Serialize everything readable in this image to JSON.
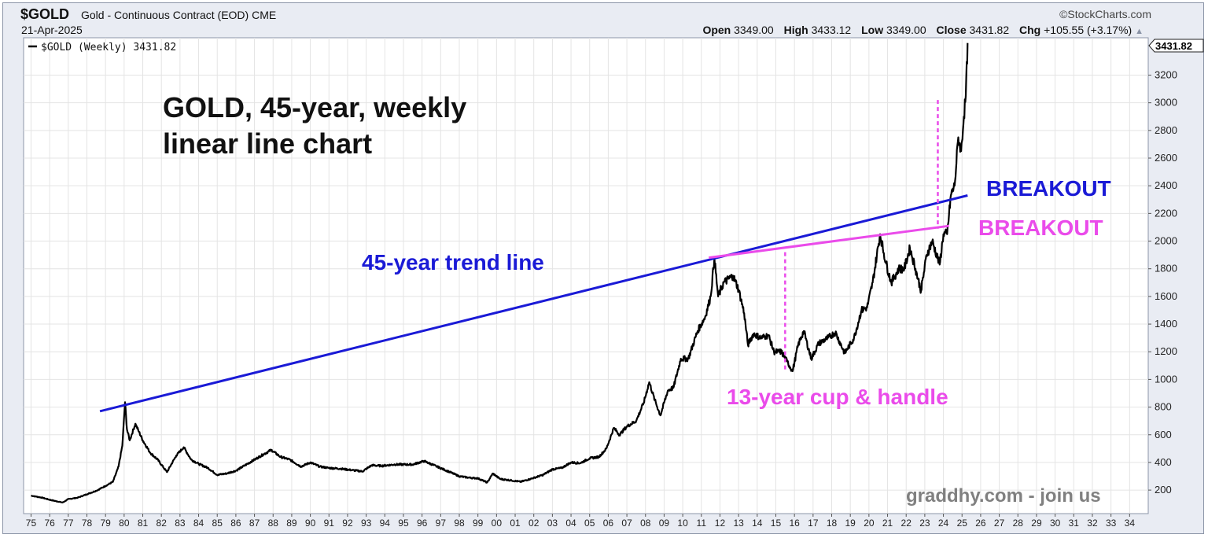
{
  "header": {
    "symbol": "$GOLD",
    "description": "Gold - Continuous Contract (EOD)",
    "exchange": "CME",
    "date": "21-Apr-2025",
    "credit": "©StockCharts.com",
    "quote": [
      {
        "label": "Open",
        "value": "3349.00"
      },
      {
        "label": "High",
        "value": "3433.12"
      },
      {
        "label": "Low",
        "value": "3349.00"
      },
      {
        "label": "Close",
        "value": "3431.82"
      },
      {
        "label": "Chg",
        "value": "+105.55 (+3.17%)"
      }
    ],
    "change_arrow": "▲"
  },
  "legend": {
    "label": "$GOLD (Weekly) 3431.82",
    "color": "#000000"
  },
  "annotations": {
    "title_line1": "GOLD, 45-year, weekly",
    "title_line2": "linear line chart",
    "trend_label": "45-year trend line",
    "breakout_blue": "BREAKOUT",
    "breakout_pink": "BREAKOUT",
    "cup_label": "13-year cup & handle",
    "website": "graddhy.com - join us"
  },
  "colors": {
    "price_line": "#000000",
    "trend_line": "#1a1ad6",
    "pink": "#ea4bea",
    "grid": "#e4e4e4",
    "frame_bg": "#e9ecf3"
  },
  "chart_data": {
    "type": "line",
    "title": "",
    "series": [
      {
        "name": "$GOLD (Weekly)",
        "points": [
          [
            1975.0,
            160
          ],
          [
            1975.6,
            145
          ],
          [
            1976.0,
            130
          ],
          [
            1976.7,
            110
          ],
          [
            1977.0,
            135
          ],
          [
            1977.5,
            145
          ],
          [
            1978.0,
            170
          ],
          [
            1978.5,
            195
          ],
          [
            1979.0,
            230
          ],
          [
            1979.4,
            260
          ],
          [
            1979.7,
            370
          ],
          [
            1979.9,
            520
          ],
          [
            1980.05,
            835
          ],
          [
            1980.15,
            640
          ],
          [
            1980.3,
            560
          ],
          [
            1980.6,
            680
          ],
          [
            1980.8,
            620
          ],
          [
            1981.0,
            560
          ],
          [
            1981.4,
            470
          ],
          [
            1981.8,
            420
          ],
          [
            1982.3,
            330
          ],
          [
            1982.8,
            450
          ],
          [
            1983.2,
            510
          ],
          [
            1983.6,
            420
          ],
          [
            1984.0,
            390
          ],
          [
            1984.5,
            360
          ],
          [
            1985.0,
            310
          ],
          [
            1985.5,
            320
          ],
          [
            1986.0,
            340
          ],
          [
            1986.5,
            380
          ],
          [
            1987.0,
            420
          ],
          [
            1987.5,
            460
          ],
          [
            1987.9,
            490
          ],
          [
            1988.4,
            440
          ],
          [
            1988.9,
            420
          ],
          [
            1989.5,
            370
          ],
          [
            1990.0,
            400
          ],
          [
            1990.5,
            370
          ],
          [
            1991.0,
            360
          ],
          [
            1991.6,
            355
          ],
          [
            1992.2,
            345
          ],
          [
            1992.8,
            335
          ],
          [
            1993.3,
            380
          ],
          [
            1993.8,
            375
          ],
          [
            1994.5,
            385
          ],
          [
            1995.5,
            385
          ],
          [
            1996.1,
            410
          ],
          [
            1996.8,
            370
          ],
          [
            1997.5,
            330
          ],
          [
            1998.0,
            300
          ],
          [
            1998.5,
            290
          ],
          [
            1999.0,
            285
          ],
          [
            1999.5,
            255
          ],
          [
            1999.8,
            320
          ],
          [
            2000.2,
            280
          ],
          [
            2000.8,
            270
          ],
          [
            2001.3,
            260
          ],
          [
            2001.8,
            280
          ],
          [
            2002.5,
            310
          ],
          [
            2003.0,
            350
          ],
          [
            2003.5,
            360
          ],
          [
            2004.0,
            400
          ],
          [
            2004.5,
            395
          ],
          [
            2005.0,
            430
          ],
          [
            2005.5,
            440
          ],
          [
            2005.9,
            500
          ],
          [
            2006.3,
            650
          ],
          [
            2006.6,
            600
          ],
          [
            2007.0,
            660
          ],
          [
            2007.5,
            700
          ],
          [
            2007.9,
            830
          ],
          [
            2008.2,
            980
          ],
          [
            2008.5,
            850
          ],
          [
            2008.8,
            740
          ],
          [
            2009.2,
            920
          ],
          [
            2009.5,
            940
          ],
          [
            2009.9,
            1150
          ],
          [
            2010.3,
            1150
          ],
          [
            2010.8,
            1350
          ],
          [
            2011.2,
            1450
          ],
          [
            2011.5,
            1600
          ],
          [
            2011.7,
            1880
          ],
          [
            2011.9,
            1600
          ],
          [
            2012.2,
            1700
          ],
          [
            2012.7,
            1750
          ],
          [
            2013.0,
            1650
          ],
          [
            2013.3,
            1480
          ],
          [
            2013.5,
            1250
          ],
          [
            2013.8,
            1330
          ],
          [
            2014.2,
            1300
          ],
          [
            2014.6,
            1320
          ],
          [
            2014.9,
            1200
          ],
          [
            2015.3,
            1200
          ],
          [
            2015.6,
            1130
          ],
          [
            2015.9,
            1060
          ],
          [
            2016.2,
            1250
          ],
          [
            2016.5,
            1350
          ],
          [
            2016.9,
            1150
          ],
          [
            2017.3,
            1260
          ],
          [
            2017.8,
            1300
          ],
          [
            2018.2,
            1340
          ],
          [
            2018.7,
            1190
          ],
          [
            2019.2,
            1300
          ],
          [
            2019.6,
            1500
          ],
          [
            2019.9,
            1520
          ],
          [
            2020.2,
            1700
          ],
          [
            2020.6,
            2050
          ],
          [
            2020.9,
            1850
          ],
          [
            2021.2,
            1700
          ],
          [
            2021.6,
            1800
          ],
          [
            2021.9,
            1800
          ],
          [
            2022.2,
            1950
          ],
          [
            2022.5,
            1800
          ],
          [
            2022.8,
            1640
          ],
          [
            2023.1,
            1900
          ],
          [
            2023.4,
            2000
          ],
          [
            2023.8,
            1830
          ],
          [
            2024.0,
            2050
          ],
          [
            2024.2,
            2050
          ],
          [
            2024.4,
            2330
          ],
          [
            2024.6,
            2400
          ],
          [
            2024.8,
            2750
          ],
          [
            2024.95,
            2650
          ],
          [
            2025.1,
            2900
          ],
          [
            2025.2,
            3050
          ],
          [
            2025.3,
            3431.82
          ]
        ]
      }
    ],
    "overlays": [
      {
        "kind": "trend_line",
        "color": "#1a1ad6",
        "from": [
          1978.7,
          770
        ],
        "to": [
          2025.3,
          2330
        ]
      },
      {
        "kind": "resistance_line",
        "color": "#ea4bea",
        "from": [
          2011.4,
          1880
        ],
        "to": [
          2024.3,
          2110
        ]
      },
      {
        "kind": "dashed_vertical",
        "color": "#ea4bea",
        "x": 2015.5,
        "y_from": 1920,
        "y_to": 1060
      },
      {
        "kind": "dashed_vertical",
        "color": "#ea4bea",
        "x": 2023.7,
        "y_from": 3020,
        "y_to": 2090
      }
    ],
    "xlim": [
      1974.6,
      2035.0
    ],
    "ylim": [
      30,
      3470
    ],
    "x_tick_labels": [
      "75",
      "76",
      "77",
      "78",
      "79",
      "80",
      "81",
      "82",
      "83",
      "84",
      "85",
      "86",
      "87",
      "88",
      "89",
      "90",
      "91",
      "92",
      "93",
      "94",
      "95",
      "96",
      "97",
      "98",
      "99",
      "00",
      "01",
      "02",
      "03",
      "04",
      "05",
      "06",
      "07",
      "08",
      "09",
      "10",
      "11",
      "12",
      "13",
      "14",
      "15",
      "16",
      "17",
      "18",
      "19",
      "20",
      "21",
      "22",
      "23",
      "24",
      "25",
      "26",
      "27",
      "28",
      "29",
      "30",
      "31",
      "32",
      "33",
      "34"
    ],
    "y_ticks": [
      200,
      400,
      600,
      800,
      1000,
      1200,
      1400,
      1600,
      1800,
      2000,
      2200,
      2400,
      2600,
      2800,
      3000,
      3200
    ],
    "y_tick_labels": [
      "200",
      "400",
      "600",
      "800",
      "1000",
      "1200",
      "1400",
      "1600",
      "1800",
      "2000",
      "2200",
      "2400",
      "2600",
      "2800",
      "3000",
      "3200"
    ],
    "last_value_label": "3431.82",
    "xlabel": "",
    "ylabel": "",
    "grid": true,
    "legend_position": "top-left"
  }
}
